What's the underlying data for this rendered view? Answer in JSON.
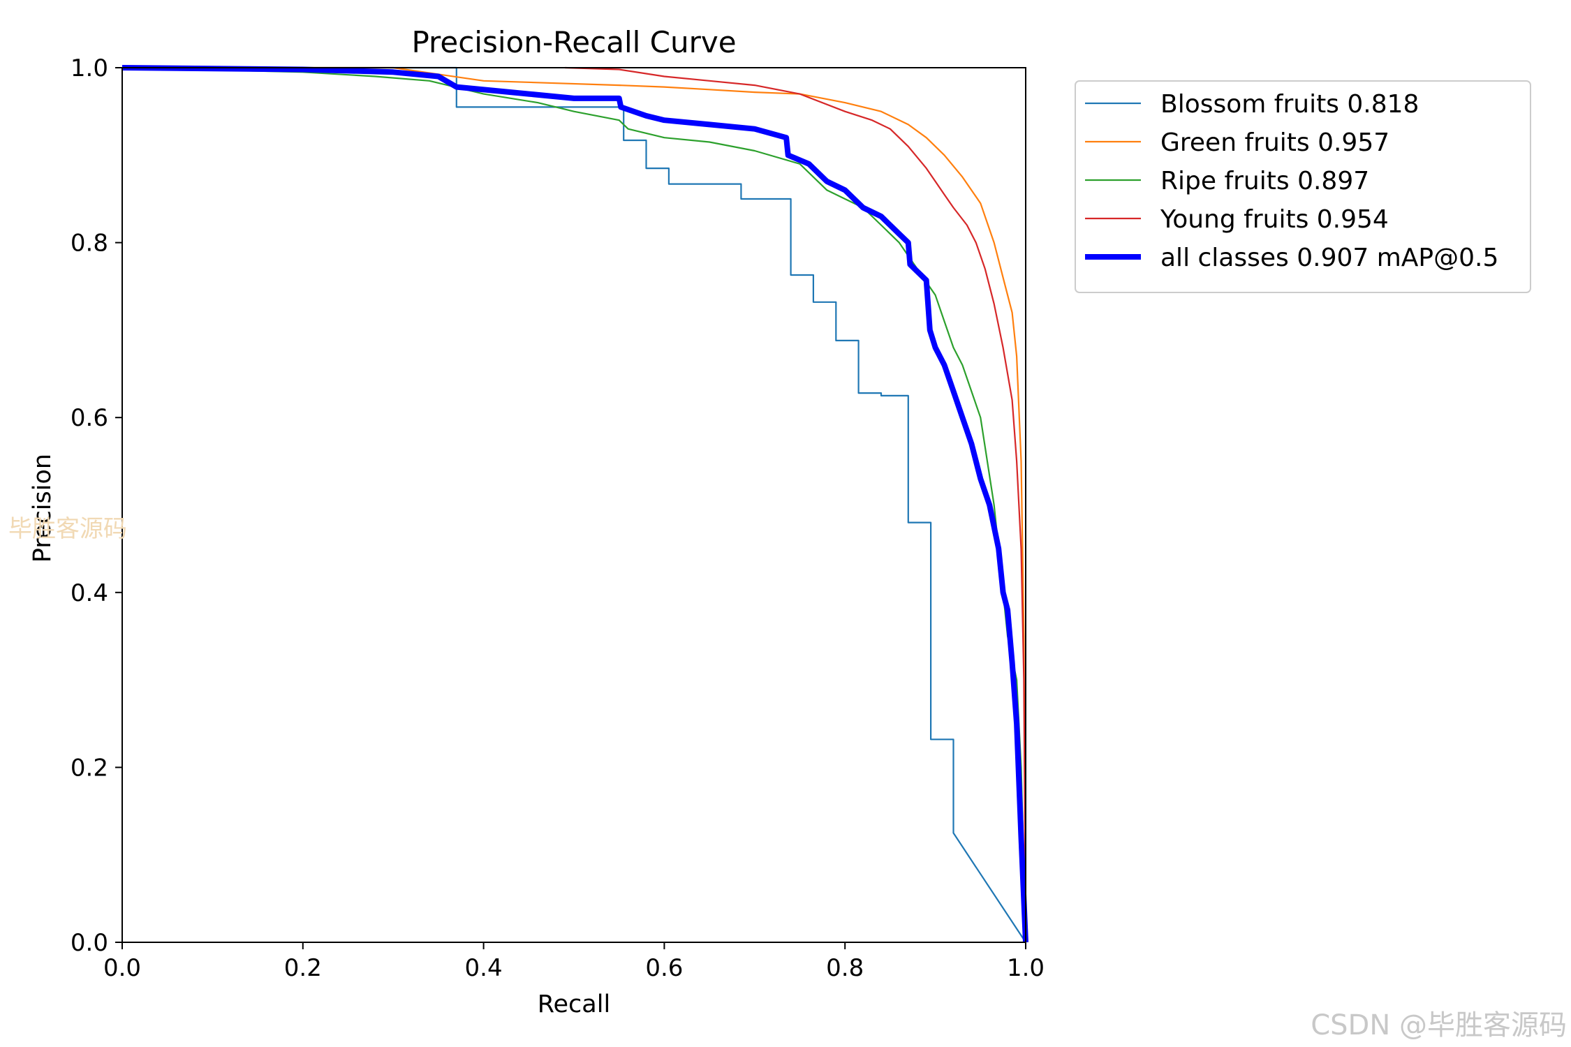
{
  "chart_data": {
    "type": "line",
    "title": "Precision-Recall Curve",
    "xlabel": "Recall",
    "ylabel": "Precision",
    "xlim": [
      0,
      1
    ],
    "ylim": [
      0,
      1
    ],
    "xticks": [
      "0.0",
      "0.2",
      "0.4",
      "0.6",
      "0.8",
      "1.0"
    ],
    "yticks": [
      "0.0",
      "0.2",
      "0.4",
      "0.6",
      "0.8",
      "1.0"
    ],
    "legend_position": "outside-top-right",
    "series": [
      {
        "name": "Blossom fruits",
        "label": "Blossom fruits 0.818",
        "color": "#1f77b4",
        "width": "thin",
        "x": [
          0.0,
          0.2,
          0.36,
          0.37,
          0.37,
          0.55,
          0.555,
          0.555,
          0.58,
          0.58,
          0.605,
          0.605,
          0.685,
          0.685,
          0.74,
          0.74,
          0.765,
          0.765,
          0.79,
          0.79,
          0.815,
          0.815,
          0.84,
          0.84,
          0.86,
          0.87,
          0.87,
          0.895,
          0.895,
          0.92,
          0.92,
          1.0
        ],
        "y": [
          1.0,
          1.0,
          1.0,
          1.0,
          0.955,
          0.955,
          0.955,
          0.917,
          0.917,
          0.885,
          0.885,
          0.867,
          0.867,
          0.85,
          0.85,
          0.763,
          0.763,
          0.732,
          0.732,
          0.688,
          0.688,
          0.628,
          0.628,
          0.625,
          0.625,
          0.625,
          0.48,
          0.48,
          0.232,
          0.232,
          0.125,
          0.0
        ]
      },
      {
        "name": "Green fruits",
        "label": "Green fruits 0.957",
        "color": "#ff7f0e",
        "width": "thin",
        "x": [
          0.0,
          0.3,
          0.4,
          0.55,
          0.6,
          0.65,
          0.7,
          0.75,
          0.8,
          0.84,
          0.87,
          0.89,
          0.91,
          0.93,
          0.95,
          0.965,
          0.975,
          0.985,
          0.99,
          0.995,
          0.998,
          1.0
        ],
        "y": [
          1.0,
          1.0,
          0.985,
          0.98,
          0.978,
          0.975,
          0.972,
          0.97,
          0.96,
          0.95,
          0.935,
          0.92,
          0.9,
          0.875,
          0.845,
          0.8,
          0.76,
          0.72,
          0.67,
          0.55,
          0.35,
          0.0
        ]
      },
      {
        "name": "Ripe fruits",
        "label": "Ripe fruits 0.897",
        "color": "#2ca02c",
        "width": "thin",
        "x": [
          0.0,
          0.2,
          0.28,
          0.34,
          0.4,
          0.46,
          0.5,
          0.55,
          0.56,
          0.6,
          0.65,
          0.7,
          0.75,
          0.78,
          0.8,
          0.82,
          0.84,
          0.86,
          0.88,
          0.9,
          0.91,
          0.92,
          0.93,
          0.95,
          0.965,
          0.975,
          0.98,
          0.99,
          0.995,
          1.0
        ],
        "y": [
          1.0,
          0.995,
          0.99,
          0.985,
          0.97,
          0.96,
          0.95,
          0.94,
          0.93,
          0.92,
          0.915,
          0.905,
          0.89,
          0.86,
          0.85,
          0.84,
          0.82,
          0.8,
          0.77,
          0.74,
          0.71,
          0.68,
          0.66,
          0.6,
          0.5,
          0.4,
          0.35,
          0.3,
          0.2,
          0.0
        ]
      },
      {
        "name": "Young fruits",
        "label": "Young fruits 0.954",
        "color": "#d62728",
        "width": "thin",
        "x": [
          0.49,
          0.55,
          0.6,
          0.65,
          0.7,
          0.75,
          0.8,
          0.83,
          0.85,
          0.87,
          0.89,
          0.9,
          0.91,
          0.92,
          0.935,
          0.945,
          0.955,
          0.965,
          0.975,
          0.985,
          0.99,
          0.995,
          0.998,
          1.0
        ],
        "y": [
          1.0,
          0.998,
          0.99,
          0.985,
          0.98,
          0.97,
          0.95,
          0.94,
          0.93,
          0.91,
          0.885,
          0.87,
          0.855,
          0.84,
          0.82,
          0.8,
          0.77,
          0.73,
          0.68,
          0.62,
          0.55,
          0.45,
          0.3,
          0.0
        ]
      },
      {
        "name": "all classes",
        "label": "all classes 0.907 mAP@0.5",
        "color": "#0000ff",
        "width": "thick",
        "x": [
          0.0,
          0.2,
          0.3,
          0.35,
          0.37,
          0.45,
          0.5,
          0.55,
          0.552,
          0.58,
          0.6,
          0.65,
          0.7,
          0.735,
          0.737,
          0.76,
          0.78,
          0.8,
          0.82,
          0.84,
          0.86,
          0.87,
          0.872,
          0.89,
          0.894,
          0.9,
          0.91,
          0.92,
          0.93,
          0.94,
          0.95,
          0.96,
          0.97,
          0.975,
          0.98,
          0.985,
          0.99,
          0.995,
          1.0
        ],
        "y": [
          1.0,
          0.998,
          0.995,
          0.99,
          0.978,
          0.97,
          0.965,
          0.965,
          0.955,
          0.945,
          0.94,
          0.935,
          0.93,
          0.92,
          0.9,
          0.89,
          0.87,
          0.86,
          0.84,
          0.83,
          0.81,
          0.8,
          0.775,
          0.757,
          0.7,
          0.68,
          0.66,
          0.63,
          0.6,
          0.57,
          0.53,
          0.5,
          0.45,
          0.4,
          0.38,
          0.32,
          0.25,
          0.12,
          0.0
        ]
      }
    ]
  },
  "watermarks": {
    "left": "毕胜客源码",
    "corner": "CSDN @毕胜客源码"
  }
}
